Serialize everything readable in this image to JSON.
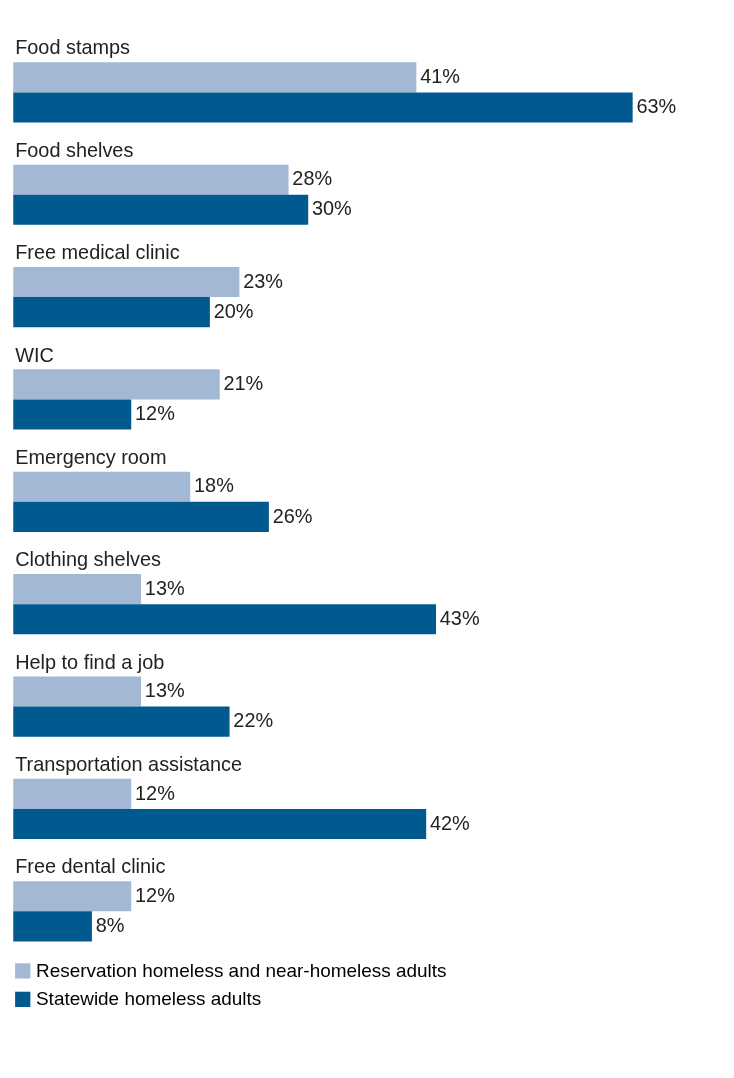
{
  "chart_data": {
    "type": "bar",
    "orientation": "horizontal",
    "categories": [
      "Food stamps",
      "Food shelves",
      "Free medical clinic",
      "WIC",
      "Emergency room",
      "Clothing shelves",
      "Help to find a job",
      "Transportation assistance",
      "Free dental clinic"
    ],
    "series": [
      {
        "name": "Reservation homeless and near-homeless adults",
        "color": "#a3b8d5",
        "values": [
          41,
          28,
          23,
          21,
          18,
          13,
          13,
          12,
          12
        ],
        "value_labels": [
          "41%",
          "28%",
          "23%",
          "21%",
          "18%",
          "13%",
          "13%",
          "12%",
          "12%"
        ]
      },
      {
        "name": "Statewide homeless adults",
        "color": "#005a8f",
        "values": [
          63,
          30,
          20,
          12,
          26,
          43,
          22,
          42,
          8
        ],
        "value_labels": [
          "63%",
          "30%",
          "20%",
          "12%",
          "26%",
          "43%",
          "22%",
          "42%",
          "8%"
        ]
      }
    ],
    "tick_labels": false,
    "grid": false,
    "legend": "bottom"
  }
}
